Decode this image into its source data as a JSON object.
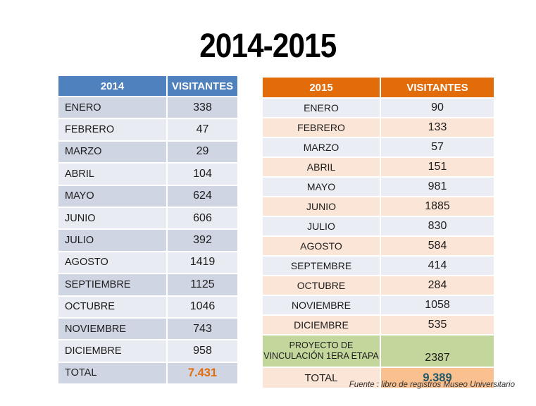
{
  "title": "2014-2015",
  "footer": {
    "source": "Fuente : libro de registros Museo Universitario"
  },
  "colors": {
    "header_blue": "#4E81BD",
    "header_orange": "#E36C0A",
    "row_dark_blue": "#CFD5E3",
    "row_light_blue": "#E9EBF2",
    "row_pale_blue": "#EAEDF4",
    "row_peach": "#FBE5D6",
    "row_green": "#C3D69B",
    "total_cell_orange": "#FAC090",
    "total_text_orange": "#E36C0A",
    "total_text_teal": "#215968",
    "title_text": "#000000"
  },
  "left_table": {
    "year_header": "2014",
    "visitors_header": "VISITANTES",
    "rows": [
      {
        "label": "ENERO",
        "value": "338"
      },
      {
        "label": "FEBRERO",
        "value": "47"
      },
      {
        "label": "MARZO",
        "value": "29"
      },
      {
        "label": "ABRIL",
        "value": "104"
      },
      {
        "label": "MAYO",
        "value": "624"
      },
      {
        "label": "JUNIO",
        "value": "606"
      },
      {
        "label": "JULIO",
        "value": "392"
      },
      {
        "label": "AGOSTO",
        "value": "1419"
      },
      {
        "label": "SEPTIEMBRE",
        "value": "1125"
      },
      {
        "label": "OCTUBRE",
        "value": "1046"
      },
      {
        "label": "NOVIEMBRE",
        "value": "743"
      },
      {
        "label": "DICIEMBRE",
        "value": "958"
      }
    ],
    "total_label": "TOTAL",
    "total_value": "7.431"
  },
  "right_table": {
    "year_header": "2015",
    "visitors_header": "VISITANTES",
    "rows": [
      {
        "label": "ENERO",
        "value": "90"
      },
      {
        "label": "FEBRERO",
        "value": "133"
      },
      {
        "label": "MARZO",
        "value": "57"
      },
      {
        "label": "ABRIL",
        "value": "151"
      },
      {
        "label": "MAYO",
        "value": "981"
      },
      {
        "label": "JUNIO",
        "value": "1885"
      },
      {
        "label": "JULIO",
        "value": "830"
      },
      {
        "label": "AGOSTO",
        "value": "584"
      },
      {
        "label": "SEPTEMBRE",
        "value": "414"
      },
      {
        "label": "OCTUBRE",
        "value": "284"
      },
      {
        "label": "NOVIEMBRE",
        "value": "1058"
      },
      {
        "label": "DICIEMBRE",
        "value": "535"
      }
    ],
    "project_row": {
      "label_lines": [
        "PROYECTO DE",
        "VINCULACIÓN 1ERA ETAPA"
      ],
      "value": "2387"
    },
    "total_label": "TOTAL",
    "total_value": "9.389"
  }
}
